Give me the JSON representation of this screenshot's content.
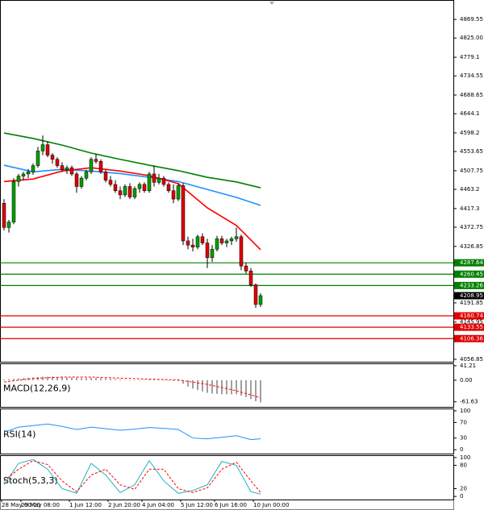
{
  "chart_data": [
    {
      "type": "candlestick",
      "ylim": [
        4051,
        4916
      ],
      "yticks": [
        4869.55,
        {
          "value": 4825,
          "label": "4825.00"
        },
        4779.1,
        4734.55,
        4688.65,
        4644.1,
        4598.2,
        4553.65,
        4507.75,
        4463.2,
        4417.3,
        4372.75,
        4326.85,
        4191.85,
        4145.95,
        4056.85
      ],
      "up_color": "#00a000",
      "down_color": "#e00000",
      "candles": [
        [
          4430,
          4440,
          4365,
          4372
        ],
        [
          4372,
          4390,
          4360,
          4385
        ],
        [
          4385,
          4490,
          4380,
          4482
        ],
        [
          4482,
          4500,
          4470,
          4495
        ],
        [
          4495,
          4505,
          4485,
          4500
        ],
        [
          4500,
          4512,
          4490,
          4505
        ],
        [
          4505,
          4525,
          4498,
          4520
        ],
        [
          4520,
          4565,
          4515,
          4555
        ],
        [
          4555,
          4592,
          4545,
          4570
        ],
        [
          4570,
          4578,
          4540,
          4545
        ],
        [
          4545,
          4550,
          4525,
          4535
        ],
        [
          4535,
          4540,
          4515,
          4520
        ],
        [
          4520,
          4528,
          4505,
          4510
        ],
        [
          4510,
          4520,
          4500,
          4515
        ],
        [
          4515,
          4520,
          4495,
          4500
        ],
        [
          4500,
          4505,
          4455,
          4470
        ],
        [
          4470,
          4495,
          4465,
          4490
        ],
        [
          4490,
          4510,
          4485,
          4505
        ],
        [
          4505,
          4540,
          4500,
          4535
        ],
        [
          4535,
          4548,
          4525,
          4530
        ],
        [
          4530,
          4535,
          4500,
          4505
        ],
        [
          4505,
          4510,
          4480,
          4485
        ],
        [
          4485,
          4495,
          4470,
          4475
        ],
        [
          4475,
          4485,
          4455,
          4460
        ],
        [
          4460,
          4470,
          4440,
          4450
        ],
        [
          4450,
          4475,
          4445,
          4470
        ],
        [
          4470,
          4478,
          4440,
          4445
        ],
        [
          4445,
          4470,
          4440,
          4465
        ],
        [
          4465,
          4480,
          4455,
          4475
        ],
        [
          4475,
          4480,
          4455,
          4460
        ],
        [
          4460,
          4505,
          4455,
          4500
        ],
        [
          4500,
          4520,
          4470,
          4480
        ],
        [
          4480,
          4500,
          4475,
          4490
        ],
        [
          4490,
          4495,
          4470,
          4475
        ],
        [
          4475,
          4480,
          4455,
          4460
        ],
        [
          4460,
          4475,
          4430,
          4440
        ],
        [
          4440,
          4478,
          4435,
          4472
        ],
        [
          4472,
          4478,
          4330,
          4340
        ],
        [
          4340,
          4350,
          4320,
          4330
        ],
        [
          4330,
          4345,
          4315,
          4325
        ],
        [
          4325,
          4355,
          4320,
          4350
        ],
        [
          4350,
          4358,
          4330,
          4335
        ],
        [
          4335,
          4345,
          4275,
          4300
        ],
        [
          4300,
          4330,
          4290,
          4320
        ],
        [
          4320,
          4352,
          4315,
          4345
        ],
        [
          4345,
          4352,
          4330,
          4335
        ],
        [
          4335,
          4345,
          4325,
          4340
        ],
        [
          4340,
          4350,
          4330,
          4345
        ],
        [
          4345,
          4372,
          4338,
          4350
        ],
        [
          4350,
          4355,
          4270,
          4280
        ],
        [
          4280,
          4288,
          4262,
          4268
        ],
        [
          4268,
          4275,
          4230,
          4235
        ],
        [
          4235,
          4238,
          4180,
          4188
        ],
        [
          4188,
          4215,
          4182,
          4209
        ]
      ],
      "series": [
        {
          "color": "#008000",
          "x": [
            0,
            6,
            12,
            18,
            24,
            30,
            36,
            42,
            48,
            53
          ],
          "values": [
            4598,
            4585,
            4569,
            4550,
            4535,
            4521,
            4508,
            4492,
            4481,
            4467
          ]
        },
        {
          "color": "#1e90ff",
          "x": [
            0,
            6,
            12,
            18,
            24,
            30,
            36,
            42,
            48,
            53
          ],
          "values": [
            4521,
            4505,
            4511,
            4507,
            4501,
            4492,
            4482,
            4463,
            4444,
            4425
          ]
        },
        {
          "color": "#ff0000",
          "x": [
            0,
            6,
            12,
            18,
            24,
            30,
            36,
            42,
            48,
            53
          ],
          "values": [
            4482,
            4488,
            4507,
            4515,
            4507,
            4496,
            4477,
            4419,
            4377,
            4319
          ]
        }
      ],
      "levels": [
        {
          "value": 4287.64,
          "color": "#008000"
        },
        {
          "value": 4260.45,
          "color": "#008000"
        },
        {
          "value": 4233.26,
          "color": "#008000"
        },
        {
          "value": 4160.74,
          "color": "#e00000"
        },
        {
          "value": 4133.55,
          "color": "#e00000"
        },
        {
          "value": 4106.36,
          "color": "#e00000"
        }
      ],
      "current_price": 4208.95,
      "xticks": [
        {
          "value": 0,
          "label": "28 May 00:00"
        },
        {
          "value": 4,
          "label": "29 May 08:00"
        },
        {
          "value": 14,
          "label": "1 Jun 12:00"
        },
        {
          "value": 22,
          "label": "2 Jun 20:00"
        },
        {
          "value": 29,
          "label": "4 Jun 04:00"
        },
        {
          "value": 37,
          "label": "5 Jun 12:00"
        },
        {
          "value": 44,
          "label": "6 Jun 16:00"
        },
        {
          "value": 52,
          "label": "10 Jun 00:00"
        }
      ]
    },
    {
      "type": "macd",
      "title": "MACD(12,26,9)",
      "ylim": [
        -76,
        48
      ],
      "yticks": [
        41.21,
        {
          "value": 0,
          "label": "0.00"
        },
        -61.63
      ],
      "histogram_color": "#a0a0a0",
      "histogram": [
        2,
        3,
        4,
        5,
        6,
        7,
        8,
        9,
        10,
        10,
        10,
        9,
        9,
        8,
        8,
        7,
        6,
        6,
        7,
        7,
        6,
        5,
        4,
        3,
        2,
        1,
        0,
        0,
        0,
        1,
        2,
        2,
        1,
        0,
        -1,
        -2,
        -2,
        -10,
        -18,
        -24,
        -28,
        -32,
        -36,
        -38,
        -39,
        -40,
        -40,
        -40,
        -40,
        -44,
        -48,
        -54,
        -60,
        -63
      ],
      "series": [
        {
          "color": "#ff0000",
          "dash": true,
          "x": [
            0,
            6,
            12,
            18,
            24,
            30,
            36,
            42,
            48,
            53
          ],
          "values": [
            -5,
            5,
            9,
            9,
            6,
            3,
            1,
            -12,
            -30,
            -50
          ]
        }
      ]
    },
    {
      "type": "line",
      "title": "RSI(14)",
      "ylim": [
        -10,
        106
      ],
      "yticks": [
        100,
        70,
        30,
        0
      ],
      "series": [
        {
          "color": "#1e90ff",
          "x": [
            0,
            3,
            6,
            9,
            12,
            15,
            18,
            21,
            24,
            27,
            30,
            33,
            36,
            39,
            42,
            45,
            48,
            51,
            53
          ],
          "values": [
            45,
            58,
            62,
            66,
            60,
            52,
            58,
            54,
            50,
            53,
            57,
            55,
            52,
            30,
            28,
            32,
            36,
            26,
            28
          ]
        }
      ]
    },
    {
      "type": "line",
      "title": "Stoch(5,3,3)",
      "ylim": [
        -8,
        106
      ],
      "yticks": [
        100,
        80,
        20,
        0
      ],
      "series": [
        {
          "color": "#20b2c0",
          "x": [
            0,
            3,
            6,
            9,
            12,
            15,
            18,
            21,
            24,
            27,
            30,
            33,
            36,
            39,
            42,
            45,
            48,
            51,
            53
          ],
          "values": [
            30,
            85,
            95,
            70,
            20,
            8,
            85,
            55,
            10,
            30,
            92,
            40,
            8,
            15,
            30,
            90,
            80,
            12,
            6
          ]
        },
        {
          "color": "#ff0000",
          "dash": true,
          "x": [
            0,
            3,
            6,
            9,
            12,
            15,
            18,
            21,
            24,
            27,
            30,
            33,
            36,
            39,
            42,
            45,
            48,
            51,
            53
          ],
          "values": [
            40,
            70,
            92,
            82,
            40,
            12,
            55,
            70,
            30,
            18,
            70,
            70,
            20,
            10,
            22,
            70,
            88,
            40,
            10
          ]
        }
      ]
    }
  ]
}
